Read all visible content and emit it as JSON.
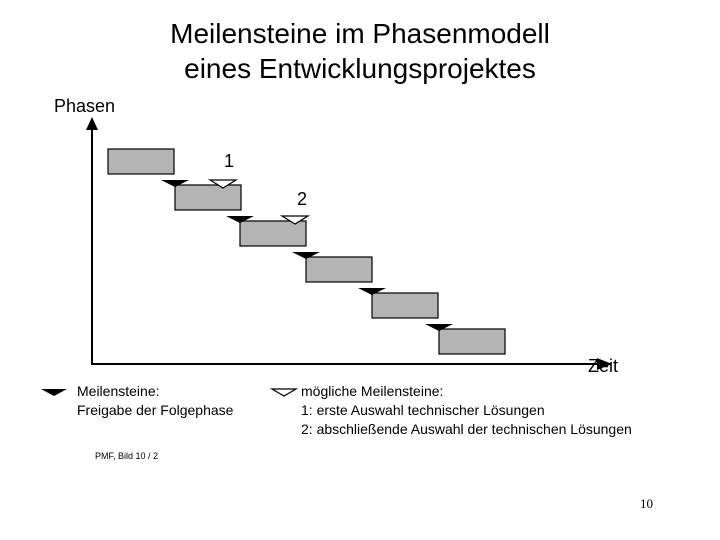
{
  "title": {
    "line1": "Meilensteine im Phasenmodell",
    "line2": "eines Entwicklungsprojektes"
  },
  "axes": {
    "y_label": "Phasen",
    "x_label": "Zeit"
  },
  "diagram": {
    "phase_count": 6,
    "bar_color": "#b4b4b4",
    "milestones_per_phase_transition": 5,
    "possible_milestones": [
      {
        "label": "1",
        "after_phase": 1
      },
      {
        "label": "2",
        "after_phase": 2
      }
    ]
  },
  "legend": {
    "milestone": {
      "icon": "filled-triangle-icon",
      "line1": "Meilensteine:",
      "line2": "Freigabe der Folgephase"
    },
    "possible_milestone": {
      "icon": "outline-triangle-icon",
      "line1": "mögliche Meilensteine:",
      "line2": "1: erste Auswahl technischer Lösungen",
      "line3": "2: abschließende Auswahl der technischen Lösungen"
    }
  },
  "footer": "PMF, Bild 10 / 2",
  "page_number": "10"
}
